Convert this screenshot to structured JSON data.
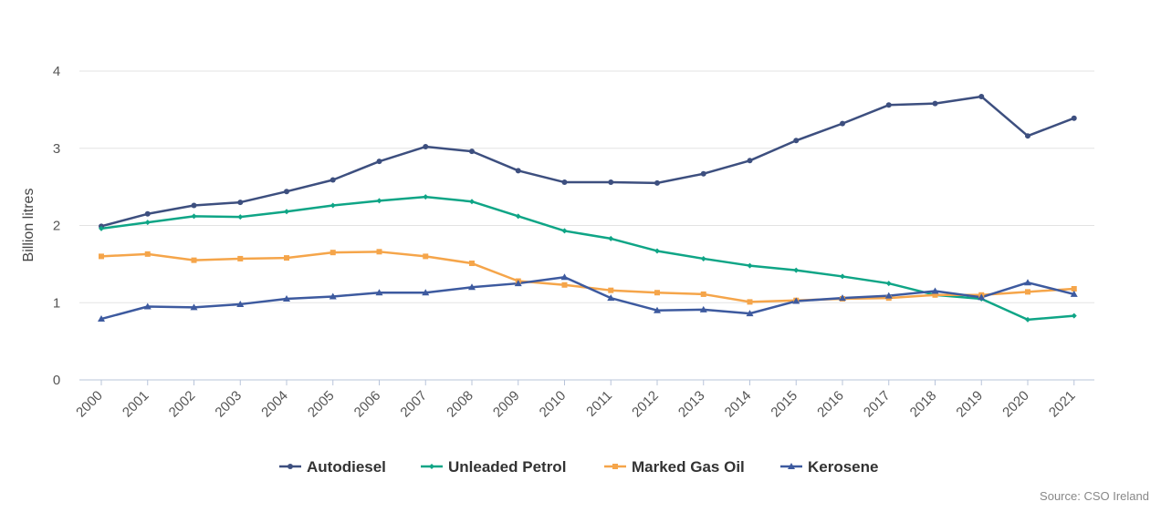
{
  "chart_data": {
    "type": "line",
    "title": "",
    "xlabel": "",
    "ylabel": "Billion litres",
    "ylim": [
      0,
      4
    ],
    "yticks": [
      0,
      1,
      2,
      3,
      4
    ],
    "grid": true,
    "legend_position": "bottom",
    "categories": [
      "2000",
      "2001",
      "2002",
      "2003",
      "2004",
      "2005",
      "2006",
      "2007",
      "2008",
      "2009",
      "2010",
      "2011",
      "2012",
      "2013",
      "2014",
      "2015",
      "2016",
      "2017",
      "2018",
      "2019",
      "2020",
      "2021"
    ],
    "series": [
      {
        "name": "Autodiesel",
        "color": "#3d4f7f",
        "marker": "circle",
        "values": [
          1.99,
          2.15,
          2.26,
          2.3,
          2.44,
          2.59,
          2.83,
          3.02,
          2.96,
          2.71,
          2.56,
          2.56,
          2.55,
          2.67,
          2.84,
          3.1,
          3.32,
          3.56,
          3.58,
          3.67,
          3.16,
          3.39
        ]
      },
      {
        "name": "Unleaded Petrol",
        "color": "#0fa586",
        "marker": "diamond",
        "values": [
          1.96,
          2.04,
          2.12,
          2.11,
          2.18,
          2.26,
          2.32,
          2.37,
          2.31,
          2.12,
          1.93,
          1.83,
          1.67,
          1.57,
          1.48,
          1.42,
          1.34,
          1.25,
          1.1,
          1.05,
          0.78,
          0.83
        ]
      },
      {
        "name": "Marked Gas Oil",
        "color": "#f5a54a",
        "marker": "square",
        "values": [
          1.6,
          1.63,
          1.55,
          1.57,
          1.58,
          1.65,
          1.66,
          1.6,
          1.51,
          1.28,
          1.23,
          1.16,
          1.13,
          1.11,
          1.01,
          1.03,
          1.05,
          1.06,
          1.1,
          1.1,
          1.14,
          1.18
        ]
      },
      {
        "name": "Kerosene",
        "color": "#3d5a9f",
        "marker": "triangle",
        "values": [
          0.79,
          0.95,
          0.94,
          0.98,
          1.05,
          1.08,
          1.13,
          1.13,
          1.2,
          1.25,
          1.33,
          1.06,
          0.9,
          0.91,
          0.86,
          1.02,
          1.06,
          1.09,
          1.15,
          1.07,
          1.26,
          1.11
        ]
      }
    ]
  },
  "source": "Source: CSO Ireland"
}
